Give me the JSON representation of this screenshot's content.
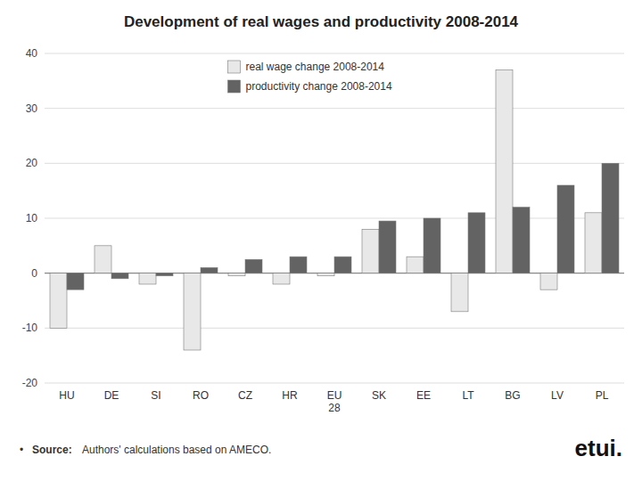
{
  "chart_data": {
    "type": "bar",
    "title": "Development of real wages and productivity 2008-2014",
    "categories": [
      "HU",
      "DE",
      "SI",
      "RO",
      "CZ",
      "HR",
      "EU\n28",
      "SK",
      "EE",
      "LT",
      "BG",
      "LV",
      "PL"
    ],
    "series": [
      {
        "name": "real wage change 2008-2014",
        "color": "#e8e8e8",
        "values": [
          -10,
          5,
          -2,
          -14,
          -0.5,
          -2,
          -0.5,
          8,
          3,
          -7,
          37,
          -3,
          11
        ]
      },
      {
        "name": "productivity change 2008-2014",
        "color": "#636363",
        "values": [
          -3,
          -1,
          -0.5,
          1,
          2.5,
          3,
          3,
          9.5,
          10,
          11,
          12,
          16,
          20
        ]
      }
    ],
    "ylim": [
      -20,
      40
    ],
    "yticks": [
      -20,
      -10,
      0,
      10,
      20,
      30,
      40
    ],
    "grid": true,
    "legend": "top",
    "annotations": [
      "•",
      "Source:",
      "Authors' calculations based on AMECO.",
      "etui."
    ]
  }
}
